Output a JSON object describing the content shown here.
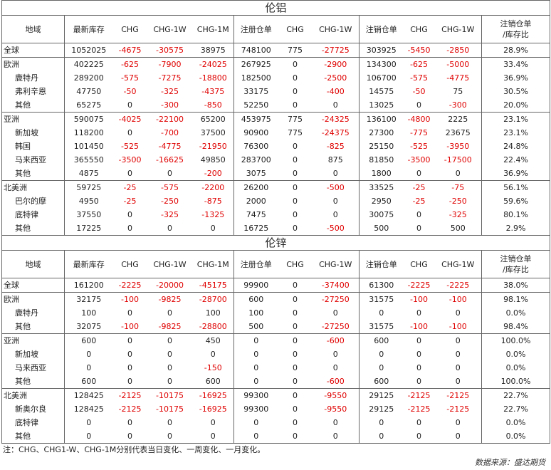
{
  "headers": [
    "地域",
    "最新库存",
    "CHG",
    "CHG-1W",
    "CHG-1M",
    "注册仓单",
    "CHG",
    "CHG-1W",
    "注销仓单",
    "CHG",
    "CHG-1W",
    "注销仓单/库存比"
  ],
  "tables": [
    {
      "title": "伦铝",
      "groups": [
        {
          "rows": [
            {
              "name": "全球",
              "level": 0,
              "cells": [
                "1052025",
                "-4675",
                "-30575",
                "38975",
                "748100",
                "775",
                "-27725",
                "303925",
                "-5450",
                "-2850",
                "28.9%"
              ]
            }
          ]
        },
        {
          "rows": [
            {
              "name": "欧洲",
              "level": 0,
              "cells": [
                "402225",
                "-625",
                "-7900",
                "-24025",
                "267925",
                "0",
                "-2900",
                "134300",
                "-625",
                "-5000",
                "33.4%"
              ]
            },
            {
              "name": "鹿特丹",
              "level": 1,
              "cells": [
                "289200",
                "-575",
                "-7275",
                "-18800",
                "182500",
                "0",
                "-2500",
                "106700",
                "-575",
                "-4775",
                "36.9%"
              ]
            },
            {
              "name": "弗利辛恩",
              "level": 1,
              "cells": [
                "47750",
                "-50",
                "-325",
                "-4375",
                "33175",
                "0",
                "-400",
                "14575",
                "-50",
                "75",
                "30.5%"
              ]
            },
            {
              "name": "其他",
              "level": 1,
              "cells": [
                "65275",
                "0",
                "-300",
                "-850",
                "52250",
                "0",
                "0",
                "13025",
                "0",
                "-300",
                "20.0%"
              ]
            }
          ]
        },
        {
          "rows": [
            {
              "name": "亚洲",
              "level": 0,
              "cells": [
                "590075",
                "-4025",
                "-22100",
                "65200",
                "453975",
                "775",
                "-24325",
                "136100",
                "-4800",
                "2225",
                "23.1%"
              ]
            },
            {
              "name": "新加坡",
              "level": 1,
              "cells": [
                "118200",
                "0",
                "-700",
                "37500",
                "90900",
                "775",
                "-24375",
                "27300",
                "-775",
                "23675",
                "23.1%"
              ]
            },
            {
              "name": "韩国",
              "level": 1,
              "cells": [
                "101450",
                "-525",
                "-4775",
                "-21950",
                "76300",
                "0",
                "-825",
                "25150",
                "-525",
                "-3950",
                "24.8%"
              ]
            },
            {
              "name": "马来西亚",
              "level": 1,
              "cells": [
                "365550",
                "-3500",
                "-16625",
                "49850",
                "283700",
                "0",
                "875",
                "81850",
                "-3500",
                "-17500",
                "22.4%"
              ]
            },
            {
              "name": "其他",
              "level": 1,
              "cells": [
                "4875",
                "0",
                "0",
                "-200",
                "3075",
                "0",
                "0",
                "1800",
                "0",
                "0",
                "36.9%"
              ]
            }
          ]
        },
        {
          "rows": [
            {
              "name": "北美洲",
              "level": 0,
              "cells": [
                "59725",
                "-25",
                "-575",
                "-2200",
                "26200",
                "0",
                "-500",
                "33525",
                "-25",
                "-75",
                "56.1%"
              ]
            },
            {
              "name": "巴尔的摩",
              "level": 1,
              "cells": [
                "4950",
                "-25",
                "-250",
                "-875",
                "2000",
                "0",
                "0",
                "2950",
                "-25",
                "-250",
                "59.6%"
              ]
            },
            {
              "name": "底特律",
              "level": 1,
              "cells": [
                "37550",
                "0",
                "-325",
                "-1325",
                "7475",
                "0",
                "0",
                "30075",
                "0",
                "-325",
                "80.1%"
              ]
            },
            {
              "name": "其他",
              "level": 1,
              "cells": [
                "17225",
                "0",
                "0",
                "0",
                "16725",
                "0",
                "-500",
                "500",
                "0",
                "500",
                "2.9%"
              ]
            }
          ]
        }
      ]
    },
    {
      "title": "伦锌",
      "groups": [
        {
          "rows": [
            {
              "name": "全球",
              "level": 0,
              "cells": [
                "161200",
                "-2225",
                "-20000",
                "-45175",
                "99900",
                "0",
                "-37400",
                "61300",
                "-2225",
                "-2225",
                "38.0%"
              ]
            }
          ]
        },
        {
          "rows": [
            {
              "name": "欧洲",
              "level": 0,
              "cells": [
                "32175",
                "-100",
                "-9825",
                "-28700",
                "600",
                "0",
                "-27250",
                "31575",
                "-100",
                "-100",
                "98.1%"
              ]
            },
            {
              "name": "鹿特丹",
              "level": 1,
              "cells": [
                "100",
                "0",
                "0",
                "100",
                "100",
                "0",
                "0",
                "0",
                "0",
                "0",
                "0.0%"
              ]
            },
            {
              "name": "其他",
              "level": 1,
              "cells": [
                "32075",
                "-100",
                "-9825",
                "-28800",
                "500",
                "0",
                "-27250",
                "31575",
                "-100",
                "-100",
                "98.4%"
              ]
            }
          ]
        },
        {
          "rows": [
            {
              "name": "亚洲",
              "level": 0,
              "cells": [
                "600",
                "0",
                "0",
                "450",
                "0",
                "0",
                "-600",
                "600",
                "0",
                "0",
                "100.0%"
              ]
            },
            {
              "name": "新加坡",
              "level": 1,
              "cells": [
                "0",
                "0",
                "0",
                "0",
                "0",
                "0",
                "0",
                "0",
                "0",
                "0",
                "0.0%"
              ]
            },
            {
              "name": "马来西亚",
              "level": 1,
              "cells": [
                "0",
                "0",
                "0",
                "-150",
                "0",
                "0",
                "0",
                "0",
                "0",
                "0",
                "0.0%"
              ]
            },
            {
              "name": "其他",
              "level": 1,
              "cells": [
                "600",
                "0",
                "0",
                "600",
                "0",
                "0",
                "-600",
                "600",
                "0",
                "0",
                "100.0%"
              ]
            }
          ]
        },
        {
          "rows": [
            {
              "name": "北美洲",
              "level": 0,
              "cells": [
                "128425",
                "-2125",
                "-10175",
                "-16925",
                "99300",
                "0",
                "-9550",
                "29125",
                "-2125",
                "-2125",
                "22.7%"
              ]
            },
            {
              "name": "新奥尔良",
              "level": 1,
              "cells": [
                "128425",
                "-2125",
                "-10175",
                "-16925",
                "99300",
                "0",
                "-9550",
                "29125",
                "-2125",
                "-2125",
                "22.7%"
              ]
            },
            {
              "name": "底特律",
              "level": 1,
              "cells": [
                "0",
                "0",
                "0",
                "0",
                "0",
                "0",
                "0",
                "0",
                "0",
                "0",
                "0.0%"
              ]
            },
            {
              "name": "其他",
              "level": 1,
              "cells": [
                "0",
                "0",
                "0",
                "0",
                "0",
                "0",
                "0",
                "0",
                "0",
                "0",
                "0.0%"
              ]
            }
          ]
        }
      ]
    }
  ],
  "note": "注：CHG、CHG1-W、CHG-1M分别代表当日变化、一周变化、一月变化。",
  "source": "数据来源：盛达期货",
  "colors": {
    "negative": "#e00000",
    "text": "#222222",
    "border": "#666666"
  }
}
